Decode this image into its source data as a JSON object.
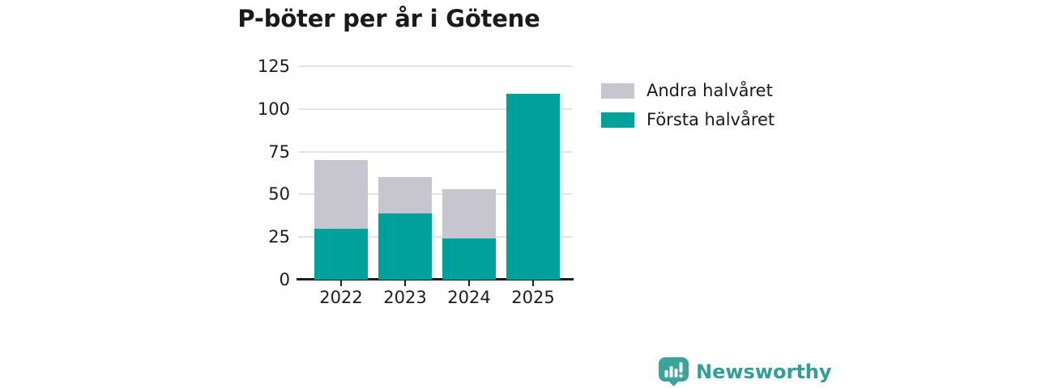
{
  "title": "P-böter per år i Götene",
  "chart_data": {
    "type": "bar",
    "stacked": true,
    "title": "P-böter per år i Götene",
    "categories": [
      "2022",
      "2023",
      "2024",
      "2025"
    ],
    "series": [
      {
        "name": "Första halvåret",
        "color": "#00a19a",
        "values": [
          30,
          39,
          24,
          109
        ]
      },
      {
        "name": "Andra halvåret",
        "color": "#c7c6cf",
        "values": [
          40,
          21,
          29,
          0
        ]
      }
    ],
    "totals": [
      70,
      60,
      53,
      109
    ],
    "xlabel": "",
    "ylabel": "",
    "ylim": [
      0,
      125
    ],
    "yticks": [
      0,
      25,
      50,
      75,
      100,
      125
    ],
    "grid": true,
    "legend_position": "right-top",
    "axis_color": "#1d1d1d",
    "gridline_color": "#e3e2e8"
  },
  "legend": {
    "items": [
      {
        "label": "Andra halvåret",
        "color": "#c7c6cf"
      },
      {
        "label": "Första halvåret",
        "color": "#00a19a"
      }
    ]
  },
  "branding": {
    "name": "Newsworthy",
    "color": "#2fa098",
    "icon": "newsworthy-chart-bubble-icon"
  }
}
